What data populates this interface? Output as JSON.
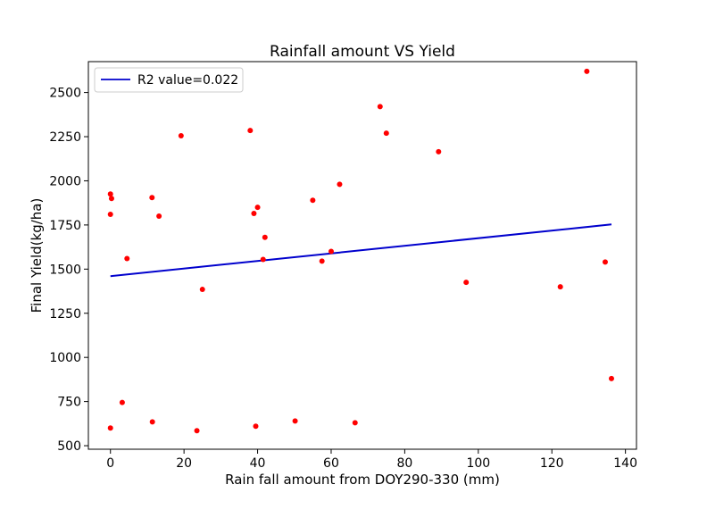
{
  "chart_data": {
    "type": "scatter",
    "title": "Rainfall amount VS Yield",
    "xlabel": "Rain fall amount from DOY290-330 (mm)",
    "ylabel": "Final Yield(kg/ha)",
    "xlim": [
      -6,
      143
    ],
    "ylim": [
      480,
      2675
    ],
    "xticks": [
      0,
      20,
      40,
      60,
      80,
      100,
      120,
      140
    ],
    "yticks": [
      500,
      750,
      1000,
      1250,
      1500,
      1750,
      2000,
      2250,
      2500
    ],
    "grid": false,
    "legend_position": "upper left",
    "points": [
      {
        "x": 0,
        "y": 600
      },
      {
        "x": 0,
        "y": 1810
      },
      {
        "x": 0,
        "y": 1925
      },
      {
        "x": 0.3,
        "y": 1900
      },
      {
        "x": 3.2,
        "y": 745
      },
      {
        "x": 4.5,
        "y": 1560
      },
      {
        "x": 11.3,
        "y": 1905
      },
      {
        "x": 11.4,
        "y": 635
      },
      {
        "x": 13.2,
        "y": 1800
      },
      {
        "x": 19.2,
        "y": 2255
      },
      {
        "x": 23.5,
        "y": 585
      },
      {
        "x": 25,
        "y": 1385
      },
      {
        "x": 38,
        "y": 2285
      },
      {
        "x": 39,
        "y": 1815
      },
      {
        "x": 39.5,
        "y": 610
      },
      {
        "x": 40,
        "y": 1850
      },
      {
        "x": 41.5,
        "y": 1555
      },
      {
        "x": 42,
        "y": 1680
      },
      {
        "x": 50.2,
        "y": 640
      },
      {
        "x": 55,
        "y": 1890
      },
      {
        "x": 57.5,
        "y": 1545
      },
      {
        "x": 60,
        "y": 1600
      },
      {
        "x": 62.3,
        "y": 1980
      },
      {
        "x": 66.5,
        "y": 630
      },
      {
        "x": 73.3,
        "y": 2420
      },
      {
        "x": 75,
        "y": 2270
      },
      {
        "x": 89.2,
        "y": 2165
      },
      {
        "x": 96.7,
        "y": 1425
      },
      {
        "x": 122.3,
        "y": 1400
      },
      {
        "x": 129.5,
        "y": 2620
      },
      {
        "x": 134.5,
        "y": 1540
      },
      {
        "x": 136.2,
        "y": 880
      }
    ],
    "series": [
      {
        "name": "R2 value=0.022",
        "type": "line",
        "x": [
          0,
          136.2
        ],
        "y": [
          1460,
          1753
        ]
      }
    ],
    "colors": {
      "points": "#ff0000",
      "fit_line": "#0000cd"
    }
  }
}
